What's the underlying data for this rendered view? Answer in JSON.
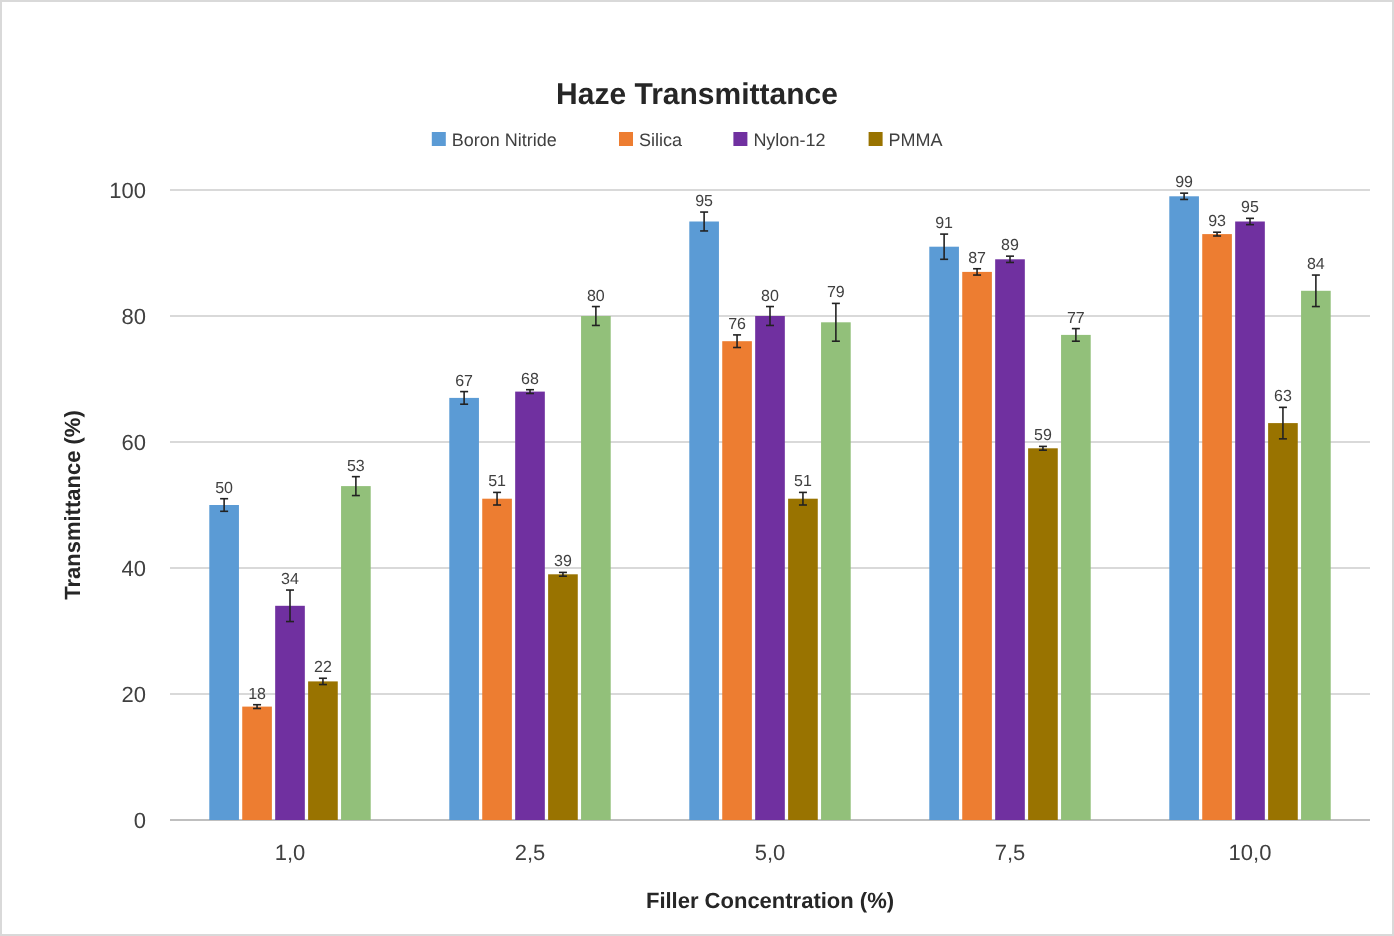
{
  "chart_data": {
    "type": "bar",
    "title": "Haze Transmittance",
    "xlabel": "Filler Concentration (%)",
    "ylabel": "Transmittance (%)",
    "categories": [
      "1,0",
      "2,5",
      "5,0",
      "7,5",
      "10,0"
    ],
    "series": [
      {
        "name": "Boron Nitride",
        "color": "#5b9bd5",
        "values": [
          50,
          67,
          95,
          91,
          99
        ],
        "errors": [
          1,
          1,
          1.5,
          2,
          0.5
        ]
      },
      {
        "name": "Silica",
        "color": "#ed7d31",
        "values": [
          18,
          51,
          76,
          87,
          93
        ],
        "errors": [
          0.3,
          1,
          1,
          0.5,
          0.3
        ]
      },
      {
        "name": "Nylon-12",
        "color": "#7030a0",
        "values": [
          34,
          68,
          80,
          89,
          95
        ],
        "errors": [
          2.5,
          0.3,
          1.5,
          0.5,
          0.5
        ]
      },
      {
        "name": "PMMA",
        "color": "#997300",
        "values": [
          22,
          39,
          51,
          59,
          63
        ],
        "errors": [
          0.5,
          0.3,
          1,
          0.3,
          2.5
        ]
      },
      {
        "color": "#92c07a",
        "values": [
          53,
          80,
          79,
          77,
          84
        ],
        "errors": [
          1.5,
          1.5,
          3,
          1,
          2.5
        ]
      }
    ],
    "ylim": [
      0,
      100
    ],
    "yticks": [
      0,
      20,
      40,
      60,
      80,
      100
    ],
    "grid": "y",
    "legend": "top",
    "data_labels": true
  }
}
